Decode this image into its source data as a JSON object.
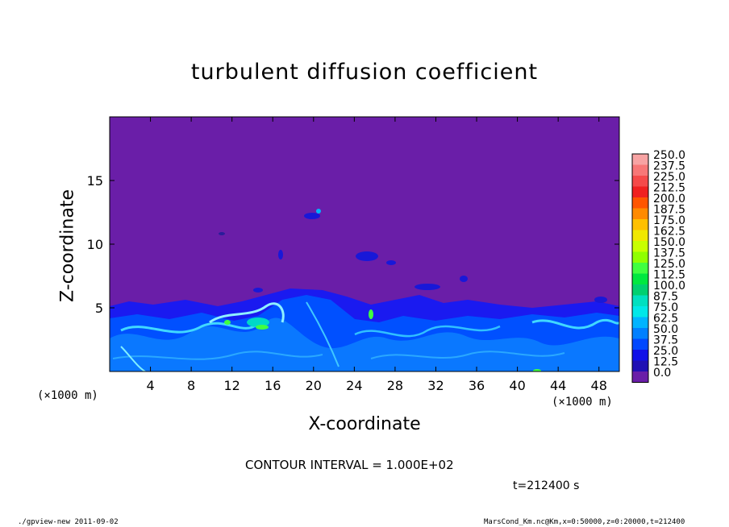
{
  "chart_data": {
    "type": "heatmap",
    "title": "turbulent diffusion coefficient",
    "xlabel": "X-coordinate",
    "ylabel": "Z-coordinate",
    "x_unit": "(×1000 m)",
    "xlim": [
      0,
      50
    ],
    "ylim": [
      0,
      20
    ],
    "x_ticks": [
      4,
      8,
      12,
      16,
      20,
      24,
      28,
      32,
      36,
      40,
      44,
      48
    ],
    "y_ticks": [
      5,
      10,
      15
    ],
    "colorbar_levels": [
      "250.0",
      "237.5",
      "225.0",
      "212.5",
      "200.0",
      "187.5",
      "175.0",
      "162.5",
      "150.0",
      "137.5",
      "125.0",
      "112.5",
      "100.0",
      "87.5",
      "75.0",
      "62.5",
      "50.0",
      "37.5",
      "25.0",
      "12.5",
      "0.0"
    ],
    "colorbar_colors": [
      "#f7a3a3",
      "#f77777",
      "#f54a4a",
      "#f02020",
      "#ff5500",
      "#ff8a00",
      "#ffc000",
      "#f0e800",
      "#c8ff00",
      "#90ff00",
      "#40ff40",
      "#00e840",
      "#00d070",
      "#00e0c0",
      "#00e8e8",
      "#00b4ff",
      "#0080ff",
      "#0048ff",
      "#1010e8",
      "#2010b4",
      "#6a1ea8"
    ],
    "background_level": "0.0",
    "contour_interval": "CONTOUR INTERVAL = 1.000E+02",
    "time_label": "t=212400  s"
  },
  "footer": {
    "left": "./gpview-new   2011-09-02",
    "right": "MarsCond_Km.nc@Km,x=0:50000,z=0:20000,t=212400"
  }
}
